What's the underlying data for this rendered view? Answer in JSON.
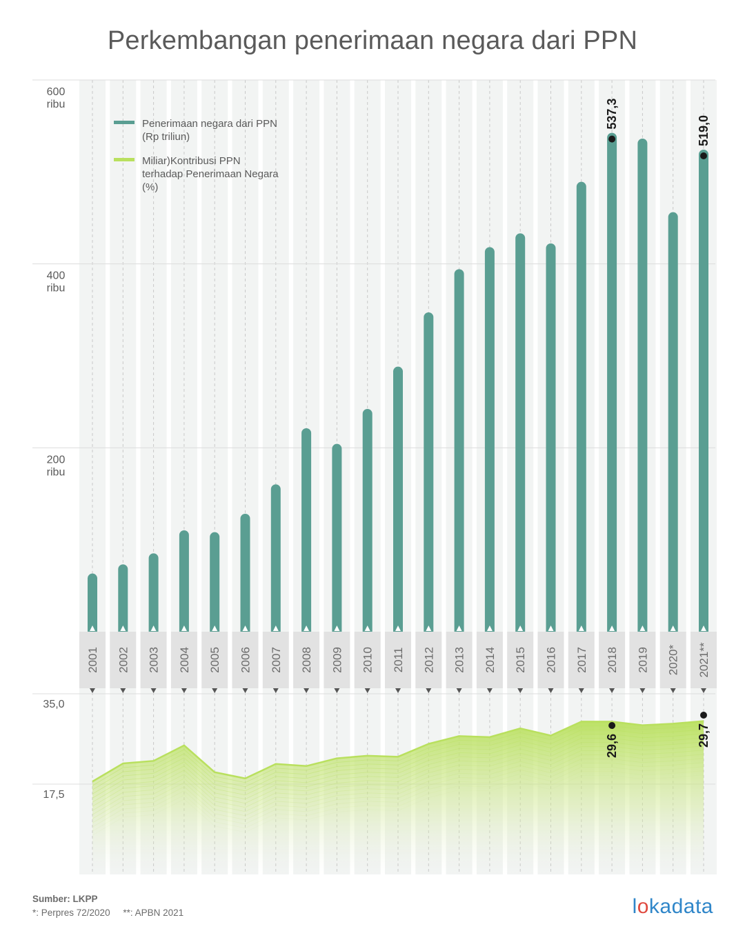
{
  "title": "Perkembangan penerimaan negara dari PPN",
  "source": {
    "line1": "Sumber: LKPP",
    "note1": "*: Perpres 72/2020",
    "note2": "**: APBN 2021"
  },
  "logo": {
    "pre": "l",
    "o": "o",
    "post": "kadata"
  },
  "colors": {
    "bar": "#5a9e92",
    "line": "#b9e05e",
    "grid_band": "#f0f2f1",
    "year_band": "#e2e2e2",
    "text": "#5a5a5a"
  },
  "chart_data": [
    {
      "type": "bar",
      "title": "Penerimaan negara dari PPN (Rp triliun)",
      "legend": {
        "bar_label_1": "Penerimaan negara dari PPN",
        "bar_label_2": "(Rp triliun)",
        "line_label_1": "Miliar)Kontribusi PPN",
        "line_label_2": "terhadap Penerimaan Negara",
        "line_label_3": "(%)"
      },
      "categories": [
        "2001",
        "2002",
        "2003",
        "2004",
        "2005",
        "2006",
        "2007",
        "2008",
        "2009",
        "2010",
        "2011",
        "2012",
        "2013",
        "2014",
        "2015",
        "2016",
        "2017",
        "2018",
        "2019",
        "2020*",
        "2021**"
      ],
      "values": [
        58,
        68,
        80,
        105,
        103,
        123,
        155,
        216,
        199,
        237,
        283,
        342,
        389,
        413,
        428,
        417,
        484,
        537.3,
        531,
        451,
        519.0
      ],
      "ylim": [
        0,
        600
      ],
      "yticks": [
        {
          "value": 200,
          "label": "200",
          "unit": "ribu"
        },
        {
          "value": 400,
          "label": "400",
          "unit": "ribu"
        },
        {
          "value": 600,
          "label": "600",
          "unit": "ribu"
        }
      ],
      "annotations": [
        {
          "index": 17,
          "label": "537,3"
        },
        {
          "index": 20,
          "label": "519,0"
        }
      ]
    },
    {
      "type": "area",
      "title": "Kontribusi PPN terhadap Penerimaan Negara (%)",
      "categories": [
        "2001",
        "2002",
        "2003",
        "2004",
        "2005",
        "2006",
        "2007",
        "2008",
        "2009",
        "2010",
        "2011",
        "2012",
        "2013",
        "2014",
        "2015",
        "2016",
        "2017",
        "2018",
        "2019",
        "2020*",
        "2021**"
      ],
      "values": [
        18.0,
        21.5,
        22.0,
        25.0,
        19.8,
        18.6,
        21.4,
        21.0,
        22.5,
        23.0,
        22.8,
        25.3,
        26.8,
        26.6,
        28.3,
        26.9,
        29.6,
        29.6,
        28.9,
        29.2,
        29.7
      ],
      "ylim": [
        0,
        35
      ],
      "yticks": [
        {
          "value": 17.5,
          "label": "17,5"
        },
        {
          "value": 35,
          "label": "35,0"
        }
      ],
      "annotations": [
        {
          "index": 17,
          "label": "29,6"
        },
        {
          "index": 20,
          "label": "29,7"
        }
      ]
    }
  ]
}
